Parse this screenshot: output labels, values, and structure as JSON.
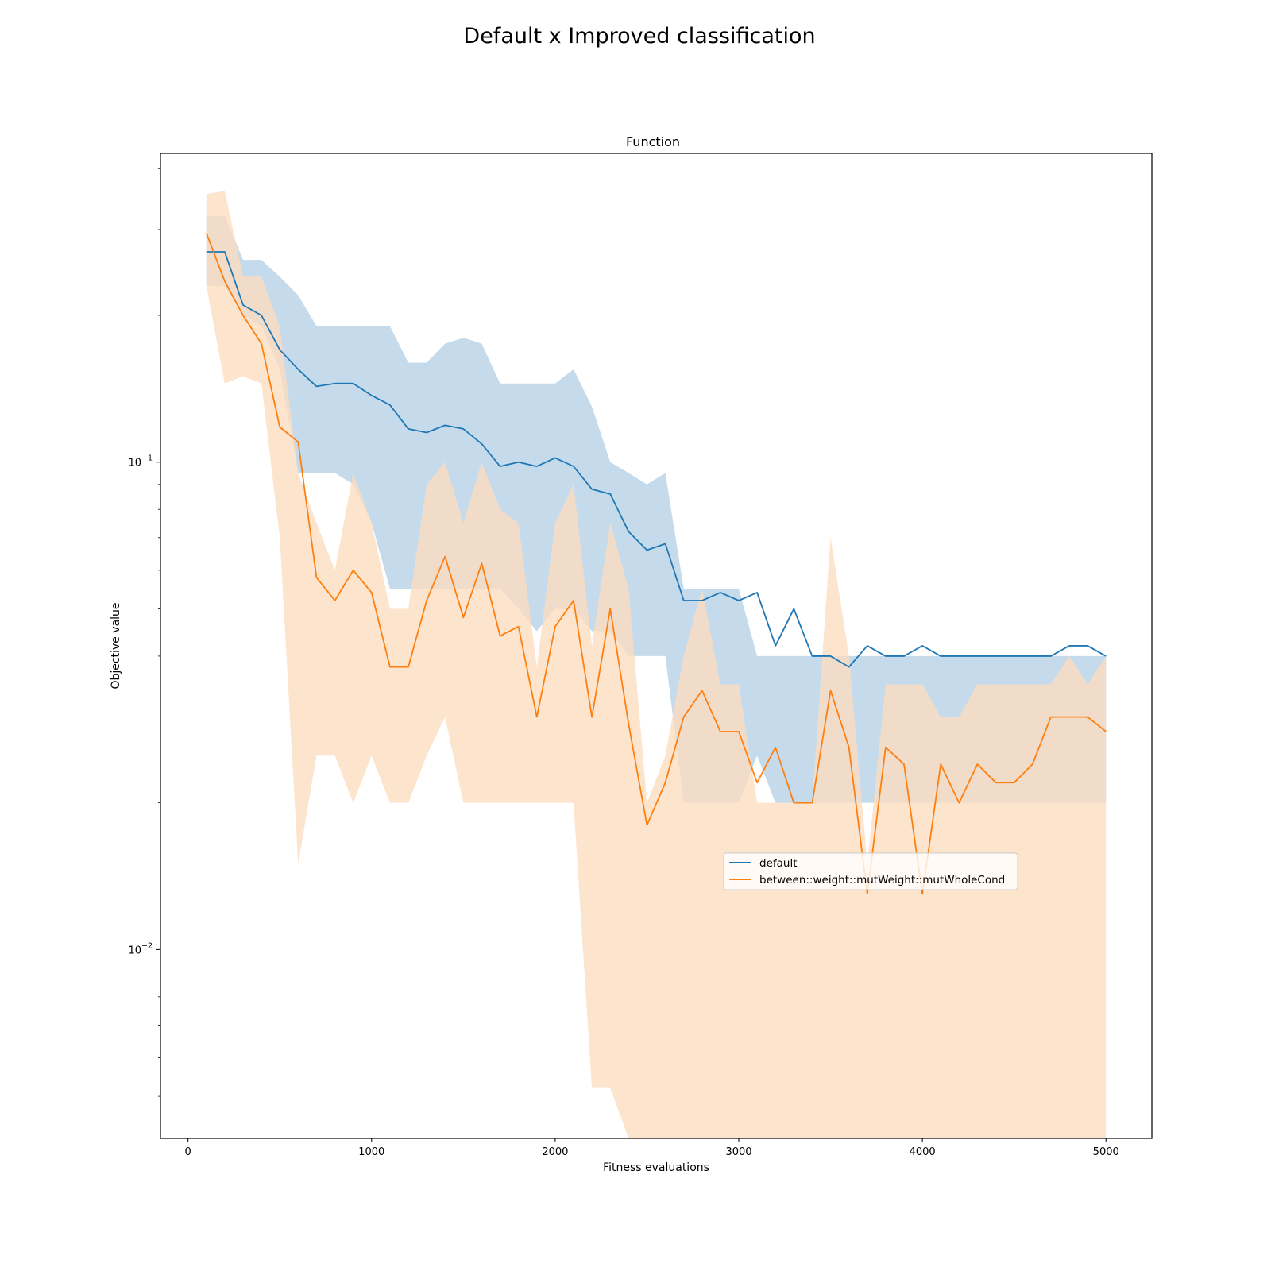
{
  "chart_data": {
    "type": "line",
    "title": "Default x Improved classification",
    "subtitle": "Function",
    "xlabel": "Fitness evaluations",
    "ylabel": "Objective value",
    "xlim": [
      -150,
      5250
    ],
    "ylim": [
      0.0041,
      0.43
    ],
    "yscale": "log",
    "xticks": [
      0,
      1000,
      2000,
      3000,
      4000,
      5000
    ],
    "yticks": [
      {
        "value": 0.1,
        "base": "10",
        "exp": "−1"
      },
      {
        "value": 0.01,
        "base": "10",
        "exp": "−2"
      }
    ],
    "grid": false,
    "legend_position": "lower-center-right",
    "x": [
      100,
      200,
      300,
      400,
      500,
      600,
      700,
      800,
      900,
      1000,
      1100,
      1200,
      1300,
      1400,
      1500,
      1600,
      1700,
      1800,
      1900,
      2000,
      2100,
      2200,
      2300,
      2400,
      2500,
      2600,
      2700,
      2800,
      2900,
      3000,
      3100,
      3200,
      3300,
      3400,
      3500,
      3600,
      3700,
      3800,
      3900,
      4000,
      4100,
      4200,
      4300,
      4400,
      4500,
      4600,
      4700,
      4800,
      4900,
      5000
    ],
    "series": [
      {
        "name": "default",
        "color": "#1f77b4",
        "band_color": "#c5dbec",
        "values": [
          0.27,
          0.27,
          0.21,
          0.2,
          0.17,
          0.155,
          0.143,
          0.145,
          0.145,
          0.137,
          0.131,
          0.117,
          0.115,
          0.119,
          0.117,
          0.109,
          0.098,
          0.1,
          0.098,
          0.102,
          0.098,
          0.088,
          0.086,
          0.072,
          0.066,
          0.068,
          0.052,
          0.052,
          0.054,
          0.052,
          0.054,
          0.042,
          0.05,
          0.04,
          0.04,
          0.038,
          0.042,
          0.04,
          0.04,
          0.042,
          0.04,
          0.04,
          0.04,
          0.04,
          0.04,
          0.04,
          0.04,
          0.042,
          0.042,
          0.04
        ],
        "upper": [
          0.32,
          0.32,
          0.26,
          0.26,
          0.24,
          0.22,
          0.19,
          0.19,
          0.19,
          0.19,
          0.19,
          0.16,
          0.16,
          0.175,
          0.18,
          0.175,
          0.145,
          0.145,
          0.145,
          0.145,
          0.155,
          0.13,
          0.1,
          0.095,
          0.09,
          0.095,
          0.055,
          0.055,
          0.055,
          0.055,
          0.04,
          0.04,
          0.04,
          0.04,
          0.04,
          0.04,
          0.04,
          0.04,
          0.04,
          0.04,
          0.04,
          0.04,
          0.04,
          0.04,
          0.04,
          0.04,
          0.04,
          0.04,
          0.04,
          0.04
        ],
        "lower": [
          0.23,
          0.23,
          0.2,
          0.19,
          0.155,
          0.095,
          0.095,
          0.095,
          0.09,
          0.075,
          0.055,
          0.055,
          0.055,
          0.055,
          0.055,
          0.055,
          0.055,
          0.05,
          0.045,
          0.05,
          0.05,
          0.045,
          0.045,
          0.04,
          0.04,
          0.04,
          0.02,
          0.02,
          0.02,
          0.02,
          0.025,
          0.02,
          0.02,
          0.02,
          0.02,
          0.02,
          0.02,
          0.02,
          0.02,
          0.02,
          0.02,
          0.02,
          0.02,
          0.02,
          0.02,
          0.02,
          0.02,
          0.02,
          0.02,
          0.02
        ]
      },
      {
        "name": "between::weight::mutWeight::mutWholeCond",
        "color": "#ff7f0e",
        "band_color": "#fddcbf",
        "values": [
          0.295,
          0.235,
          0.2,
          0.175,
          0.118,
          0.11,
          0.058,
          0.052,
          0.06,
          0.054,
          0.038,
          0.038,
          0.052,
          0.064,
          0.048,
          0.062,
          0.044,
          0.046,
          0.03,
          0.046,
          0.052,
          0.03,
          0.05,
          0.029,
          0.018,
          0.022,
          0.03,
          0.034,
          0.028,
          0.028,
          0.022,
          0.026,
          0.02,
          0.02,
          0.034,
          0.026,
          0.013,
          0.026,
          0.024,
          0.013,
          0.024,
          0.02,
          0.024,
          0.022,
          0.022,
          0.024,
          0.03,
          0.03,
          0.03,
          0.028
        ],
        "upper": [
          0.355,
          0.36,
          0.24,
          0.24,
          0.19,
          0.095,
          0.075,
          0.06,
          0.095,
          0.075,
          0.05,
          0.05,
          0.09,
          0.1,
          0.075,
          0.1,
          0.08,
          0.075,
          0.038,
          0.075,
          0.09,
          0.042,
          0.075,
          0.055,
          0.02,
          0.025,
          0.04,
          0.055,
          0.035,
          0.035,
          0.02,
          0.02,
          0.02,
          0.02,
          0.07,
          0.04,
          0.015,
          0.035,
          0.035,
          0.035,
          0.03,
          0.03,
          0.035,
          0.035,
          0.035,
          0.035,
          0.035,
          0.04,
          0.035,
          0.04
        ],
        "lower": [
          0.23,
          0.145,
          0.15,
          0.145,
          0.07,
          0.015,
          0.025,
          0.025,
          0.02,
          0.025,
          0.02,
          0.02,
          0.025,
          0.03,
          0.02,
          0.02,
          0.02,
          0.02,
          0.02,
          0.02,
          0.02,
          0.0052,
          0.0052,
          0.0041,
          0.0041,
          0.0041,
          0.0041,
          0.0041,
          0.0041,
          0.0041,
          0.0041,
          0.0041,
          0.0041,
          0.0041,
          0.0041,
          0.0041,
          0.0041,
          0.0041,
          0.0041,
          0.0041,
          0.0041,
          0.0041,
          0.0041,
          0.0041,
          0.0041,
          0.0041,
          0.0041,
          0.0041,
          0.0041,
          0.0041
        ]
      }
    ]
  }
}
